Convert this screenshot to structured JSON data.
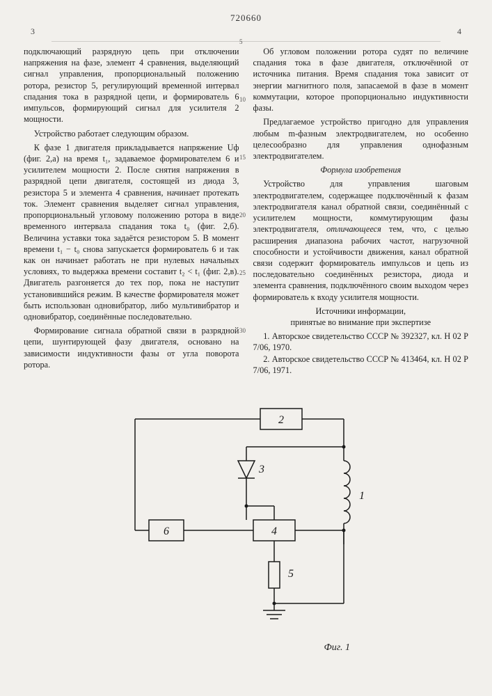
{
  "doc_number": "720660",
  "page_left": "3",
  "page_right": "4",
  "line_marks": [
    "5",
    "10",
    "15",
    "20",
    "25",
    "30"
  ],
  "paragraphs": {
    "p1": "подключающий разрядную цепь при отключении напряжения на фазе, элемент 4 сравнения, выделяющий сигнал управления, пропорциональный положению ротора, резистор 5, регулирующий временной интервал спадания тока в разрядной цепи, и формирователь 6 импульсов, формирующий сигнал для усилителя 2 мощности.",
    "p2": "Устройство работает следующим образом.",
    "p3": "К фазе 1 двигателя прикладывается напряжение Uф (фиг. 2,а) на время t₁, задаваемое формирователем 6 и усилителем мощности 2. После снятия напряжения в разрядной цепи двигателя, состоящей из диода 3, резистора 5 и элемента 4 сравнения, начинает протекать ток. Элемент сравнения выделяет сигнал управления, пропорциональный угловому положению ротора в виде временного интервала спадания тока t₀ (фиг. 2,б). Величина уставки тока задаётся резистором 5. В момент времени t₁ − t₀ снова запускается формирователь 6 и так как он начинает работать не при нулевых начальных условиях, то выдержка времени составит t₂ < t₁ (фиг. 2,в). Двигатель разгоняется до тех пор, пока не наступит установившийся режим. В качестве формирователя может быть использован одновибратор, либо мультивибратор и одновибратор, соединённые последовательно.",
    "p4": "Формирование сигнала обратной связи в разрядной цепи, шунтирующей фазу двигателя, основано на зависимости индуктивности фазы от угла поворота ротора.",
    "p5": "Об угловом положении ротора судят по величине спадания тока в фазе двигателя, отключённой от источника питания. Время спадания тока зависит от энергии магнитного поля, запасаемой в фазе в момент коммутации, которое пропорционально индуктивности фазы.",
    "p6": "Предлагаемое устройство пригодно для управления любым m-фазным электродвигателем, но особенно целесообразно для управления однофазным электродвигателем.",
    "formula_title": "Формула изобретения",
    "p7": "Устройство для управления шаговым электродвигателем, содержащее подключённый к фазам электродвигателя канал обратной связи, соединённый с усилителем мощности, коммутирующим фазы электродвигателя, ",
    "p7_em": "отличающееся",
    "p7b": " тем, что, с целью расширения диапазона рабочих частот, нагрузочной способности и устойчивости движения, канал обратной связи содержит формирователь импульсов и цепь из последовательно соединённых резистора, диода и элемента сравнения, подключённого своим выходом через формирователь к входу усилителя мощности.",
    "refs_title": "Источники информации,\nпринятые во внимание при экспертизе",
    "ref1": "1. Авторское свидетельство СССР № 392327, кл. H 02 P 7/06, 1970.",
    "ref2": "2. Авторское свидетельство СССР № 413464, кл. H 02 P 7/06, 1971."
  },
  "figure": {
    "label": "Фиг. 1",
    "stroke": "#1a1a1a",
    "bg": "#f2f0ec",
    "font": "15px serif",
    "nodes": {
      "2": "2",
      "3": "3",
      "1": "1",
      "6": "6",
      "4": "4",
      "5": "5"
    }
  }
}
